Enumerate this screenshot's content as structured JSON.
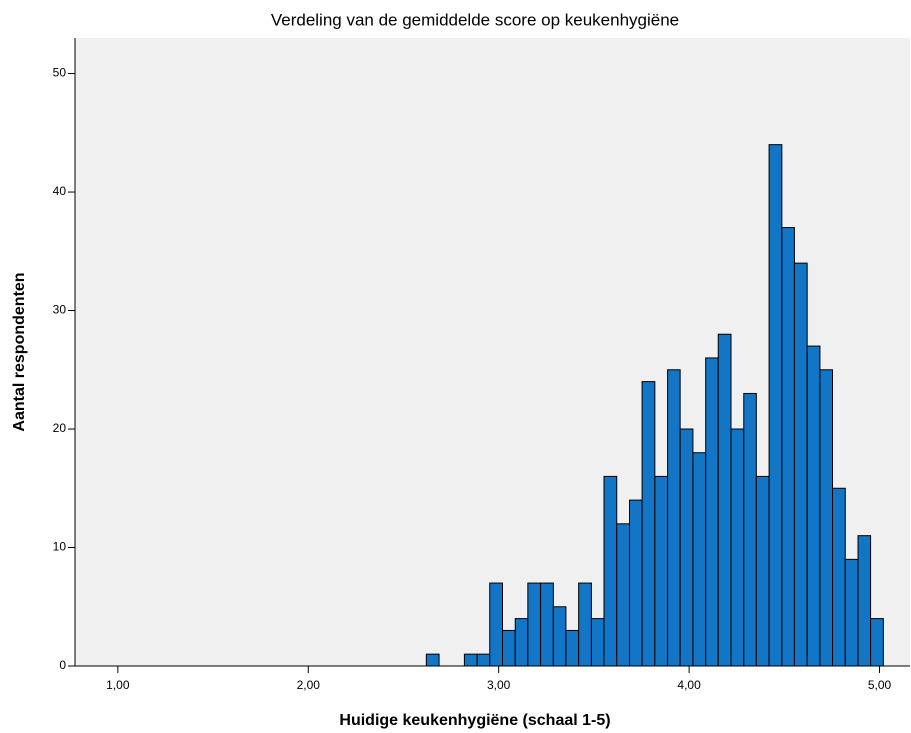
{
  "chart_data": {
    "type": "histogram",
    "title": "Verdeling van de gemiddelde score op keukenhygiëne",
    "x_label": "Huidige keukenhygiëne (schaal 1-5)",
    "y_label": "Aantal respondenten",
    "bins": [
      2.62,
      2.687,
      2.753,
      2.82,
      2.887,
      2.953,
      3.02,
      3.087,
      3.153,
      3.22,
      3.287,
      3.353,
      3.42,
      3.487,
      3.553,
      3.62,
      3.687,
      3.753,
      3.82,
      3.887,
      3.953,
      4.02,
      4.087,
      4.153,
      4.22,
      4.287,
      4.353,
      4.42,
      4.487,
      4.553,
      4.62,
      4.687,
      4.753,
      4.82,
      4.887,
      4.953,
      5.02
    ],
    "values": [
      1,
      0,
      0,
      1,
      1,
      7,
      3,
      4,
      7,
      7,
      5,
      3,
      7,
      4,
      16,
      12,
      14,
      24,
      16,
      25,
      20,
      18,
      26,
      28,
      20,
      23,
      16,
      44,
      37,
      34,
      27,
      25,
      15,
      9,
      11,
      4
    ],
    "color": "#1275c5",
    "xlim": [
      0.775,
      5.16
    ],
    "ylim": [
      0,
      53
    ],
    "xticks": [
      {
        "value": 1,
        "label": "1,00"
      },
      {
        "value": 2,
        "label": "2,00"
      },
      {
        "value": 3,
        "label": "3,00"
      },
      {
        "value": 4,
        "label": "4,00"
      },
      {
        "value": 5,
        "label": "5,00"
      }
    ],
    "yticks": [
      0,
      10,
      20,
      30,
      40,
      50
    ],
    "grid": false
  }
}
